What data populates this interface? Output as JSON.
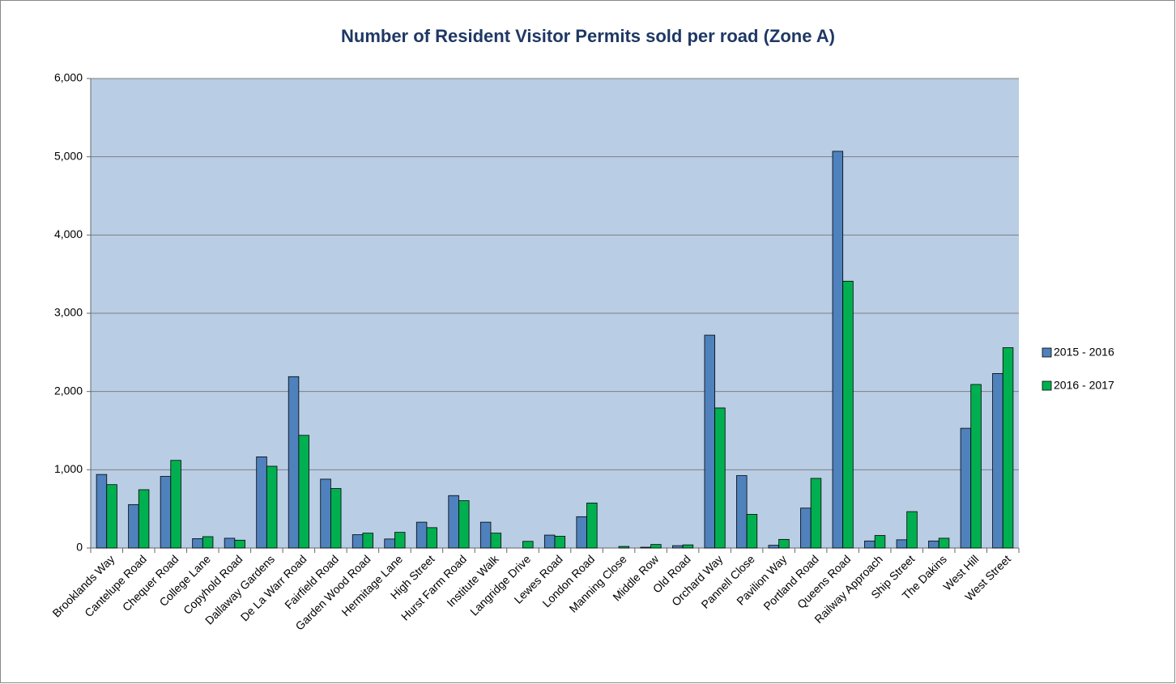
{
  "chart_data": {
    "type": "bar",
    "title": "Number of Resident Visitor Permits sold per road (Zone A)",
    "categories": [
      "Brooklands Way",
      "Cantelupe Road",
      "Chequer Road",
      "College Lane",
      "Copyhold Road",
      "Dallaway Gardens",
      "De La Warr Road",
      "Fairfield Road",
      "Garden Wood Road",
      "Hermitage Lane",
      "High Street",
      "Hurst Farm Road",
      "Institute Walk",
      "Langridge Drive",
      "Lewes Road",
      "London Road",
      "Manning Close",
      "Middle Row",
      "Old Road",
      "Orchard Way",
      "Pannell Close",
      "Pavilion Way",
      "Portland Road",
      "Queens Road",
      "Railway Approach",
      "Ship Street",
      "The Dakins",
      "West Hill",
      "West Street"
    ],
    "series": [
      {
        "name": "2015 - 2016",
        "color": "#4f81bd",
        "values": [
          940,
          555,
          915,
          120,
          125,
          1165,
          2190,
          880,
          170,
          115,
          330,
          670,
          330,
          0,
          165,
          400,
          0,
          10,
          30,
          2720,
          925,
          35,
          510,
          5070,
          90,
          105,
          90,
          1530,
          2230
        ]
      },
      {
        "name": "2016 - 2017",
        "color": "#00b050",
        "values": [
          810,
          745,
          1120,
          145,
          100,
          1045,
          1440,
          760,
          190,
          200,
          260,
          605,
          190,
          85,
          150,
          575,
          20,
          45,
          40,
          1790,
          430,
          110,
          890,
          3410,
          160,
          465,
          125,
          2090,
          2560
        ]
      }
    ],
    "ylim": [
      0,
      6000
    ],
    "yticks": [
      0,
      {
        "value": 1000,
        "label": "1,000"
      },
      {
        "value": 2000,
        "label": "2,000"
      },
      {
        "value": 3000,
        "label": "3,000"
      },
      {
        "value": 4000,
        "label": "4,000"
      },
      {
        "value": 5000,
        "label": "5,000"
      },
      {
        "value": 6000,
        "label": "6,000"
      }
    ],
    "grid": true,
    "legend": "right",
    "plot_background": "#b9cde5"
  }
}
